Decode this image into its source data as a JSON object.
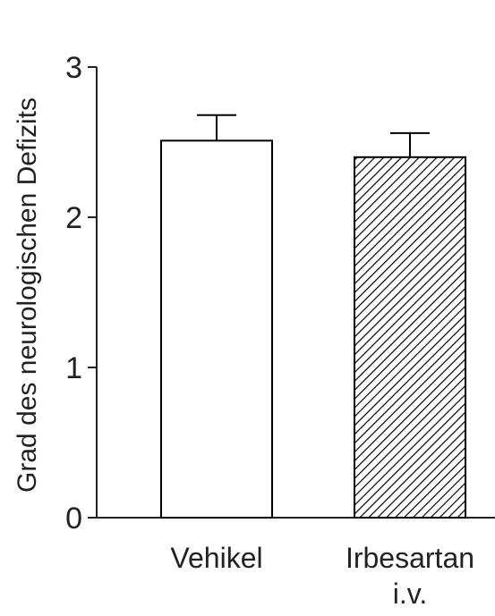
{
  "chart_data": {
    "type": "bar",
    "title": "",
    "xlabel": "",
    "ylabel": "Grad des neurologischen Defizits",
    "ylim": [
      0,
      3
    ],
    "yticks": [
      0,
      1,
      2,
      3
    ],
    "grid": false,
    "categories": [
      {
        "lines": [
          "Vehikel"
        ]
      },
      {
        "lines": [
          "Irbesartan",
          "i.v."
        ]
      }
    ],
    "values": [
      2.51,
      2.4
    ],
    "errors": [
      0.17,
      0.16
    ],
    "bar_styles": [
      "open",
      "hatched"
    ],
    "colors": {
      "axis": "#222222",
      "bar_fill": "#ffffff",
      "bar_edge": "#000000",
      "hatch": "#000000"
    }
  }
}
